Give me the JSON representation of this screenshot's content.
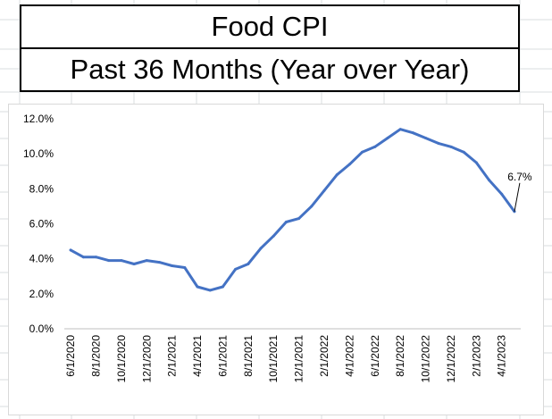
{
  "header": {
    "title": "Food CPI",
    "subtitle": "Past 36 Months (Year over Year)"
  },
  "chart_data": {
    "type": "line",
    "title": "",
    "xlabel": "",
    "ylabel": "",
    "ylim": [
      0,
      12
    ],
    "y_ticks": [
      "0.0%",
      "2.0%",
      "4.0%",
      "6.0%",
      "8.0%",
      "10.0%",
      "12.0%"
    ],
    "x_ticks": [
      "6/1/2020",
      "8/1/2020",
      "10/1/2020",
      "12/1/2020",
      "2/1/2021",
      "4/1/2021",
      "6/1/2021",
      "8/1/2021",
      "10/1/2021",
      "12/1/2021",
      "2/1/2022",
      "4/1/2022",
      "6/1/2022",
      "8/1/2022",
      "10/1/2022",
      "12/1/2022",
      "2/1/2023",
      "4/1/2023"
    ],
    "x": [
      "6/1/2020",
      "7/1/2020",
      "8/1/2020",
      "9/1/2020",
      "10/1/2020",
      "11/1/2020",
      "12/1/2020",
      "1/1/2021",
      "2/1/2021",
      "3/1/2021",
      "4/1/2021",
      "5/1/2021",
      "6/1/2021",
      "7/1/2021",
      "8/1/2021",
      "9/1/2021",
      "10/1/2021",
      "11/1/2021",
      "12/1/2021",
      "1/1/2022",
      "2/1/2022",
      "3/1/2022",
      "4/1/2022",
      "5/1/2022",
      "6/1/2022",
      "7/1/2022",
      "8/1/2022",
      "9/1/2022",
      "10/1/2022",
      "11/1/2022",
      "12/1/2022",
      "1/1/2023",
      "2/1/2023",
      "3/1/2023",
      "4/1/2023",
      "5/1/2023"
    ],
    "series": [
      {
        "color": "#4472c4",
        "values": [
          4.5,
          4.1,
          4.1,
          3.9,
          3.9,
          3.7,
          3.9,
          3.8,
          3.6,
          3.5,
          2.4,
          2.2,
          2.4,
          3.4,
          3.7,
          4.6,
          5.3,
          6.1,
          6.3,
          7.0,
          7.9,
          8.8,
          9.4,
          10.1,
          10.4,
          10.9,
          11.4,
          11.2,
          10.9,
          10.6,
          10.4,
          10.1,
          9.5,
          8.5,
          7.7,
          6.7
        ]
      }
    ],
    "annotation": {
      "text": "6.7%",
      "x": "5/1/2023",
      "y": 6.7
    },
    "grid": false,
    "legend": "none"
  }
}
